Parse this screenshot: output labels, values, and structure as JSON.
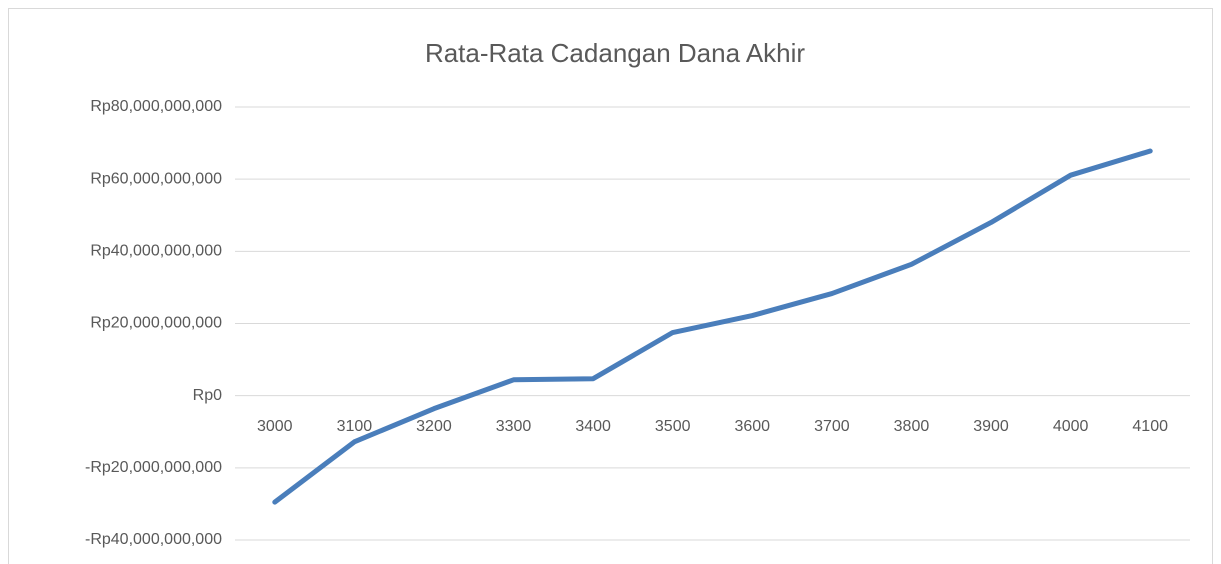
{
  "chart_data": {
    "type": "line",
    "title": "Rata-Rata Cadangan Dana Akhir",
    "categories": [
      "3000",
      "3100",
      "3200",
      "3300",
      "3400",
      "3500",
      "3600",
      "3700",
      "3800",
      "3900",
      "4000",
      "4100"
    ],
    "series": [
      {
        "name": "Rata-Rata Cadangan Dana Akhir",
        "color": "#4a7ebb",
        "values": [
          -29500000000,
          -12800000000,
          -3600000000,
          4400000000,
          4700000000,
          17500000000,
          22200000000,
          28300000000,
          36400000000,
          48000000000,
          61100000000,
          67800000000
        ]
      }
    ],
    "ylim": [
      -40000000000,
      80000000000
    ],
    "yticks": [
      {
        "value": -40000000000,
        "label": "-Rp40,000,000,000"
      },
      {
        "value": -20000000000,
        "label": "-Rp20,000,000,000"
      },
      {
        "value": 0,
        "label": "Rp0"
      },
      {
        "value": 20000000000,
        "label": "Rp20,000,000,000"
      },
      {
        "value": 40000000000,
        "label": "Rp40,000,000,000"
      },
      {
        "value": 60000000000,
        "label": "Rp60,000,000,000"
      },
      {
        "value": 80000000000,
        "label": "Rp80,000,000,000"
      }
    ],
    "grid": true
  }
}
